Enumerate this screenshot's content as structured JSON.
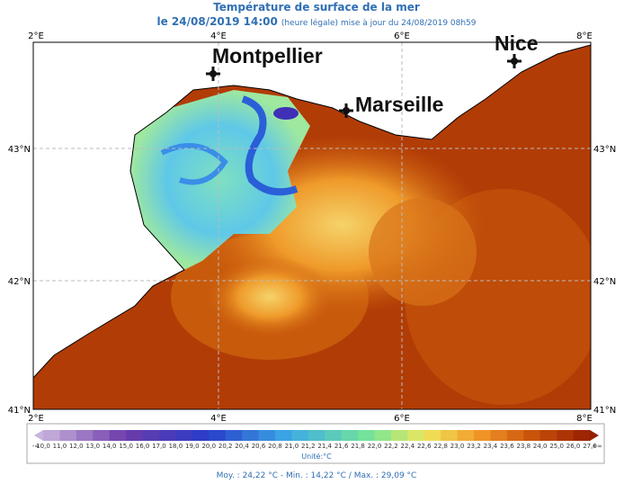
{
  "header": {
    "title": "Température de surface de la mer",
    "date": "le 24/08/2019 14:00",
    "update": "(heure légale) mise à jour du 24/08/2019 08h59"
  },
  "map": {
    "lon_labels": [
      "2°E",
      "4°E",
      "6°E",
      "8°E"
    ],
    "lat_labels": [
      "43°N",
      "42°N",
      "41°N"
    ],
    "cities": [
      "Montpellier",
      "Marseille",
      "Nice"
    ]
  },
  "colorbar": {
    "low": "-∞",
    "high": "+∞",
    "labels": [
      "10,0",
      "11,0",
      "12,0",
      "13,0",
      "14,0",
      "15,0",
      "16,0",
      "17,0",
      "18,0",
      "19,0",
      "20,0",
      "20,2",
      "20,4",
      "20,6",
      "20,8",
      "21,0",
      "21,2",
      "21,4",
      "21,6",
      "21,8",
      "22,0",
      "22,2",
      "22,4",
      "22,6",
      "22,8",
      "23,0",
      "23,2",
      "23,4",
      "23,6",
      "23,8",
      "24,0",
      "25,0",
      "26,0",
      "27,0"
    ],
    "unit": "Unité:°C"
  },
  "footer": "Moy. : 24,22 °C  -  Min. : 14,22 °C / Max. : 29,09 °C"
}
